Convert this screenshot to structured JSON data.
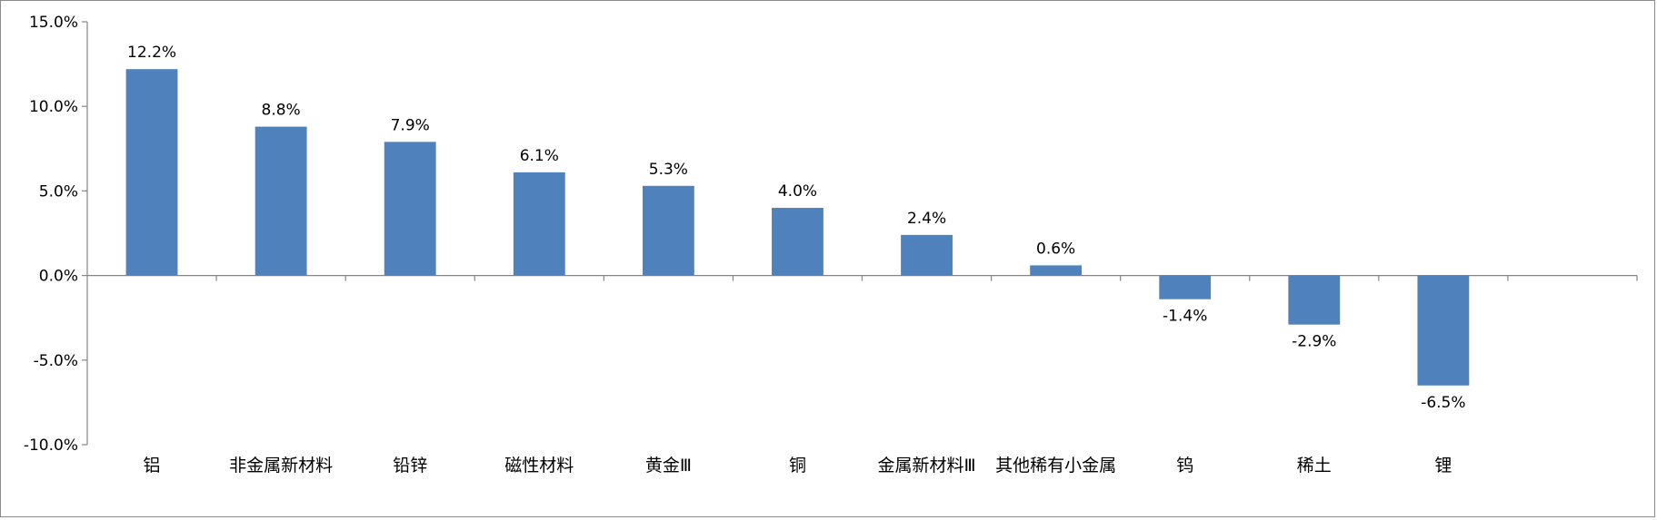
{
  "chart_data": {
    "type": "bar",
    "categories": [
      "铝",
      "非金属新材料",
      "铅锌",
      "磁性材料",
      "黄金Ⅲ",
      "铜",
      "金属新材料Ⅲ",
      "其他稀有小金属",
      "钨",
      "稀土",
      "锂",
      ""
    ],
    "values": [
      12.2,
      8.8,
      7.9,
      6.1,
      5.3,
      4.0,
      2.4,
      0.6,
      -1.4,
      -2.9,
      -6.5,
      null
    ],
    "data_labels": [
      "12.2%",
      "8.8%",
      "7.9%",
      "6.1%",
      "5.3%",
      "4.0%",
      "2.4%",
      "0.6%",
      "-1.4%",
      "-2.9%",
      "-6.5%",
      ""
    ],
    "y_ticks": [
      "15.0%",
      "10.0%",
      "5.0%",
      "0.0%",
      "-5.0%",
      "-10.0%"
    ],
    "ylim": [
      -10,
      15
    ],
    "y_unit": "%",
    "title": "",
    "xlabel": "",
    "ylabel": "",
    "grid": false,
    "legend": "none",
    "bar_color": "#4f81bd",
    "axis_color": "#868686"
  }
}
